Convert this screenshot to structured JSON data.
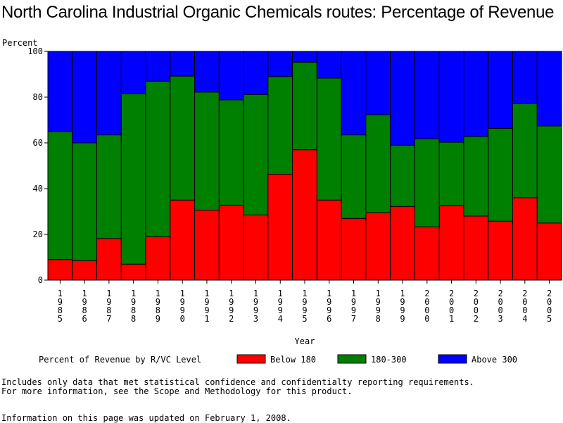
{
  "title": "North Carolina Industrial Organic Chemicals routes: Percentage of Revenue",
  "chart_data": {
    "type": "bar",
    "stacked": true,
    "title": "North Carolina Industrial Organic Chemicals routes: Percentage of Revenue",
    "ylabel": "Percent",
    "xlabel": "Year",
    "ylim": [
      0,
      100
    ],
    "yticks": [
      0,
      20,
      40,
      60,
      80,
      100
    ],
    "categories": [
      "1985",
      "1986",
      "1987",
      "1988",
      "1989",
      "1990",
      "1991",
      "1992",
      "1993",
      "1994",
      "1995",
      "1996",
      "1997",
      "1998",
      "1999",
      "2000",
      "2001",
      "2002",
      "2003",
      "2004",
      "2005"
    ],
    "series": [
      {
        "name": "Below 180",
        "color": "#ff0000",
        "values": [
          9,
          8.5,
          18.2,
          7,
          19,
          35,
          30.6,
          32.8,
          28.5,
          46.3,
          57,
          35,
          27,
          29.5,
          32.2,
          23.3,
          32.5,
          28,
          25.8,
          36,
          25
        ]
      },
      {
        "name": "180-300",
        "color": "#008000",
        "values": [
          56,
          51.5,
          45.3,
          74.5,
          68,
          54.2,
          51.6,
          46,
          52.6,
          42.7,
          38.3,
          53.3,
          36.5,
          42.8,
          26.8,
          38.5,
          27.8,
          34.8,
          40.5,
          41.2,
          42.4
        ]
      },
      {
        "name": "Above 300",
        "color": "#0000ff",
        "values": [
          35,
          40,
          36.5,
          18.5,
          13,
          10.8,
          17.8,
          21.2,
          18.9,
          11,
          4.7,
          11.7,
          36.5,
          27.7,
          41,
          38.2,
          39.7,
          37.2,
          33.7,
          22.8,
          32.6
        ]
      }
    ],
    "grid": false,
    "legend": {
      "title": "Percent of Revenue by R/VC Level",
      "position": "bottom"
    }
  },
  "notes": {
    "line1": "Includes only data that met statistical confidence and confidentialty reporting requirements.",
    "line2": "For more information, see the Scope and Methodology for this product.",
    "line3": "Information on this page was updated on February 1, 2008."
  }
}
